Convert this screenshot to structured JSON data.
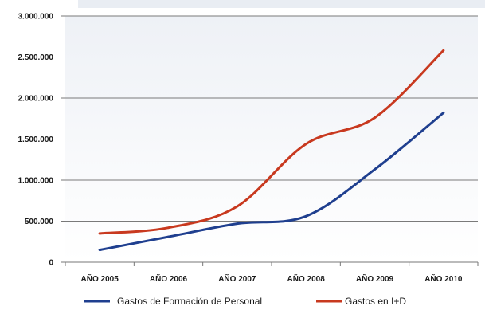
{
  "chart_data": {
    "type": "line",
    "categories": [
      "AÑO 2005",
      "AÑO 2006",
      "AÑO 2007",
      "AÑO 2008",
      "AÑO 2009",
      "AÑO 2010"
    ],
    "series": [
      {
        "name": "Gastos de Formación de Personal",
        "color": "#1f3f8f",
        "values": [
          150000,
          310000,
          470000,
          560000,
          1130000,
          1820000
        ]
      },
      {
        "name": "Gastos en I+D",
        "color": "#c8391f",
        "values": [
          350000,
          420000,
          680000,
          1440000,
          1760000,
          2580000
        ]
      }
    ],
    "ylim": [
      0,
      3000000
    ],
    "yticks": [
      0,
      500000,
      1000000,
      1500000,
      2000000,
      2500000,
      3000000
    ],
    "ytick_labels": [
      "0",
      "500.000",
      "1.000.000",
      "1.500.000",
      "2.000.000",
      "2.500.000",
      "3.000.000"
    ],
    "grid": true,
    "legend_position": "bottom",
    "background_color": "#ffffff",
    "plot_gradient": [
      "#eef1f6",
      "#ffffff"
    ]
  }
}
